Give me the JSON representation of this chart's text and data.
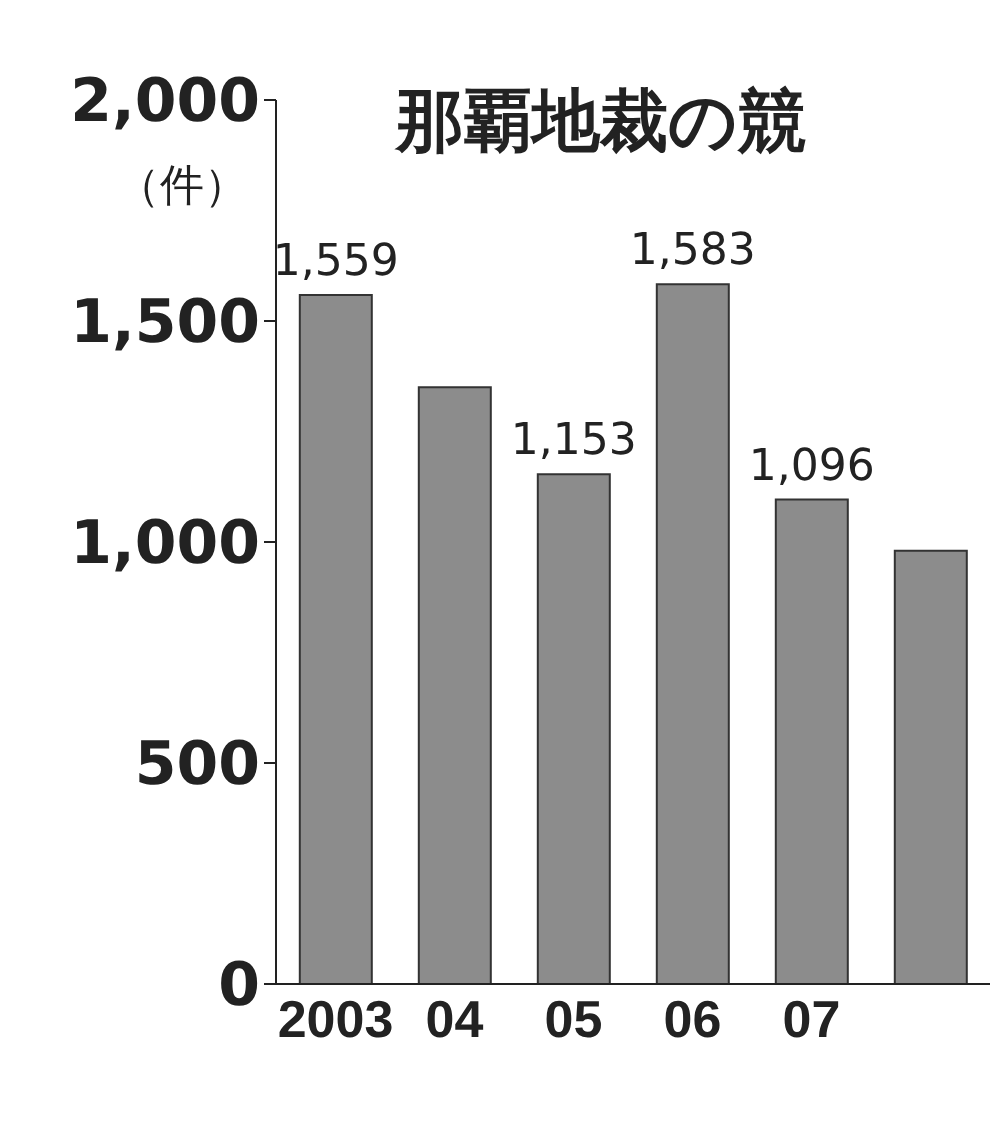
{
  "chart_data": {
    "type": "bar",
    "title": "那覇地裁の競",
    "ylabel": "（件）",
    "categories": [
      "2003",
      "04",
      "05",
      "06",
      "07",
      null
    ],
    "values": [
      1559,
      1350,
      1153,
      1583,
      1096,
      980
    ],
    "value_labels": [
      "1,559",
      null,
      "1,153",
      "1,583",
      "1,096",
      null
    ],
    "color": "#8c8c8c",
    "ylim": [
      0,
      2000
    ],
    "yticks": [
      {
        "value": 0,
        "label": "0"
      },
      {
        "value": 500,
        "label": "500"
      },
      {
        "value": 1000,
        "label": "1,000"
      },
      {
        "value": 1500,
        "label": "1,500"
      },
      {
        "value": 2000,
        "label": "2,000"
      }
    ],
    "grid": false
  }
}
